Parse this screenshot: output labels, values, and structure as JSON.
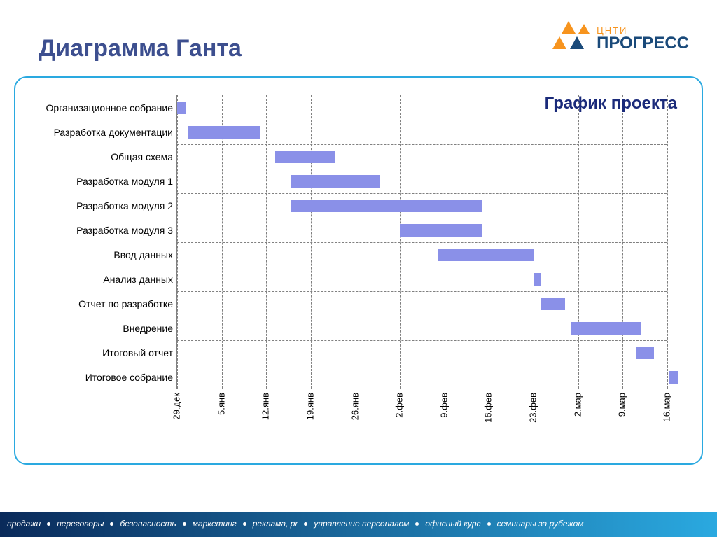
{
  "page": {
    "title": "Диаграмма Ганта",
    "title_color": "#3d4f8f",
    "frame_border_color": "#2aa9e0",
    "background": "#ffffff"
  },
  "logo": {
    "line1": "ЦНТИ",
    "line2": "ПРОГРЕСС",
    "triangle_color_orange": "#f7941e",
    "triangle_color_blue": "#1a4a7a"
  },
  "chart": {
    "type": "gantt",
    "title": "График проекта",
    "title_color": "#1a2a7a",
    "title_fontsize": 24,
    "bar_color": "#8a90e8",
    "grid_color": "#808080",
    "label_fontsize": 14,
    "tick_fontsize": 13,
    "background_color": "#ffffff",
    "x_ticks": [
      "29.дек",
      "5.янв",
      "12.янв",
      "19.янв",
      "26.янв",
      "2.фев",
      "9.фев",
      "16.фев",
      "23.фев",
      "2.мар",
      "9.мар",
      "16.мар"
    ],
    "x_domain": [
      0,
      11
    ],
    "tasks": [
      {
        "label": "Организационное собрание",
        "start": 0,
        "end": 0.2
      },
      {
        "label": "Разработка документации",
        "start": 0.25,
        "end": 1.85
      },
      {
        "label": "Общая схема",
        "start": 2.2,
        "end": 3.55
      },
      {
        "label": "Разработка модуля 1",
        "start": 2.55,
        "end": 4.55
      },
      {
        "label": "Разработка модуля 2",
        "start": 2.55,
        "end": 6.85
      },
      {
        "label": "Разработка модуля 3",
        "start": 5.0,
        "end": 6.85
      },
      {
        "label": "Ввод данных",
        "start": 5.85,
        "end": 8.0
      },
      {
        "label": "Анализ данных",
        "start": 8.0,
        "end": 8.15
      },
      {
        "label": "Отчет по разработке",
        "start": 8.15,
        "end": 8.7
      },
      {
        "label": "Внедрение",
        "start": 8.85,
        "end": 10.4
      },
      {
        "label": "Итоговый отчет",
        "start": 10.3,
        "end": 10.7
      },
      {
        "label": "Итоговое собрание",
        "start": 11.05,
        "end": 11.25
      }
    ]
  },
  "footer": {
    "gradient_from": "#0a2a5a",
    "gradient_to": "#2aa9e0",
    "items": [
      "продажи",
      "переговоры",
      "безопасность",
      "маркетинг",
      "реклама, pr",
      "управление персоналом",
      "офисный курс",
      "семинары за рубежом"
    ]
  }
}
